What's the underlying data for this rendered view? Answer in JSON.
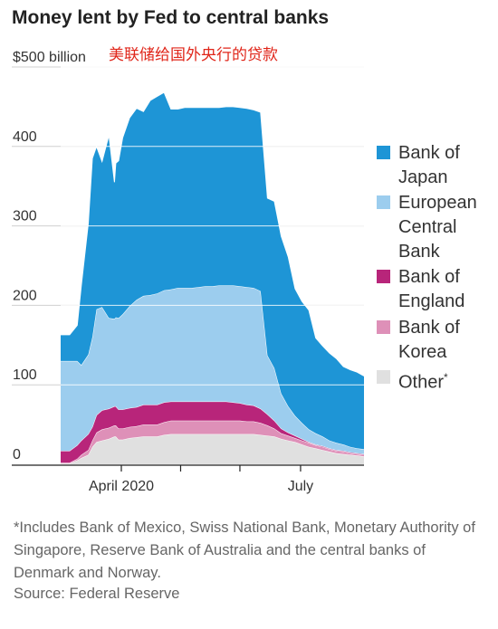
{
  "title": "Money lent by Fed to central banks",
  "subtitle_cn": "美联储给国外央行的贷款",
  "footnote": "*Includes Bank of Mexico, Swiss National Bank, Monetary Authority of Singapore, Reserve Bank of Australia and the central banks of Denmark and Norway.",
  "source": "Source: Federal Reserve",
  "colors": {
    "japan": "#1e95d6",
    "ecb": "#9ccdee",
    "england": "#b8257a",
    "korea": "#de90b8",
    "other": "#e0e0e0"
  },
  "chart_data": {
    "type": "area",
    "stacked": true,
    "ylabel": "$500 billion",
    "ylim": [
      0,
      500
    ],
    "y_ticks": [
      "0",
      "100",
      "200",
      "300",
      "400",
      "$500 billion"
    ],
    "y_tick_values": [
      0,
      100,
      200,
      300,
      400,
      500
    ],
    "x_labels": [
      {
        "label": "April 2020",
        "x": 4.4
      },
      {
        "label": "July",
        "x": 17.4
      }
    ],
    "x_ticks": [
      4.4,
      8.7,
      13,
      17.4
    ],
    "x": [
      0,
      0.6,
      0.65,
      1.2,
      1.5,
      2.0,
      2.3,
      2.6,
      3.0,
      3.5,
      3.9,
      4.0,
      4.2,
      4.5,
      5.0,
      5.5,
      6.0,
      6.5,
      7.0,
      7.5,
      8.0,
      8.5,
      9.0,
      9.5,
      10.0,
      10.5,
      11.0,
      11.5,
      12.0,
      12.5,
      13.0,
      13.5,
      14.0,
      14.5,
      15.0,
      15.5,
      16.0,
      16.5,
      17.0,
      17.5,
      18.0,
      18.5,
      19.0,
      19.5,
      20.0,
      20.5,
      21.0,
      21.5,
      22.0
    ],
    "series": [
      {
        "name": "Other*",
        "color_key": "other",
        "values": [
          1,
          1,
          1,
          5,
          8,
          12,
          22,
          28,
          30,
          32,
          35,
          35,
          31,
          31,
          33,
          34,
          35,
          35,
          35,
          37,
          38,
          38,
          38,
          38,
          38,
          38,
          38,
          38,
          38,
          38,
          38,
          38,
          38,
          37,
          36,
          35,
          32,
          30,
          28,
          25,
          22,
          20,
          18,
          16,
          14,
          13,
          12,
          11,
          10
        ]
      },
      {
        "name": "Bank of Korea",
        "color_key": "korea",
        "values": [
          1,
          1,
          1,
          2,
          4,
          6,
          8,
          12,
          14,
          14,
          14,
          14,
          14,
          14,
          14,
          14,
          15,
          15,
          15,
          16,
          17,
          17,
          17,
          17,
          17,
          17,
          17,
          17,
          17,
          17,
          17,
          16,
          16,
          15,
          13,
          10,
          7,
          6,
          5,
          5,
          5,
          4,
          4,
          3,
          3,
          3,
          2,
          2,
          2
        ]
      },
      {
        "name": "Bank of England",
        "color_key": "england",
        "values": [
          15,
          15,
          15,
          17,
          18,
          20,
          17,
          22,
          24,
          24,
          24,
          24,
          24,
          24,
          24,
          24,
          25,
          25,
          25,
          25,
          24,
          24,
          24,
          24,
          24,
          24,
          24,
          24,
          24,
          23,
          22,
          21,
          20,
          18,
          14,
          10,
          6,
          4,
          3,
          2,
          1,
          1,
          1,
          1,
          1,
          1,
          1,
          1,
          1
        ]
      },
      {
        "name": "European Central Bank",
        "color_key": "ecb",
        "values": [
          113,
          113,
          113,
          106,
          95,
          100,
          113,
          133,
          130,
          114,
          110,
          112,
          115,
          120,
          128,
          135,
          137,
          138,
          140,
          141,
          141,
          143,
          143,
          143,
          144,
          145,
          145,
          146,
          146,
          147,
          147,
          148,
          148,
          148,
          74,
          66,
          44,
          33,
          25,
          20,
          16,
          14,
          12,
          10,
          9,
          8,
          7,
          6,
          6
        ]
      },
      {
        "name": "Bank of Japan",
        "color_key": "japan",
        "values": [
          33,
          33,
          33,
          45,
          100,
          165,
          225,
          205,
          183,
          230,
          172,
          194,
          198,
          222,
          237,
          241,
          232,
          245,
          248,
          249,
          227,
          225,
          227,
          227,
          226,
          225,
          225,
          224,
          225,
          225,
          225,
          225,
          224,
          225,
          198,
          210,
          198,
          188,
          160,
          153,
          150,
          120,
          114,
          110,
          106,
          98,
          97,
          96,
          92
        ]
      }
    ],
    "legend": [
      {
        "label": "Bank of Japan",
        "lines": [
          "Bank of",
          "Japan"
        ],
        "color_key": "japan"
      },
      {
        "label": "European Central Bank",
        "lines": [
          "European",
          "Central",
          "Bank"
        ],
        "color_key": "ecb"
      },
      {
        "label": "Bank of England",
        "lines": [
          "Bank of",
          "England"
        ],
        "color_key": "england"
      },
      {
        "label": "Bank of Korea",
        "lines": [
          "Bank of",
          "Korea"
        ],
        "color_key": "korea"
      },
      {
        "label": "Other*",
        "lines": [
          "Other"
        ],
        "sup": "*",
        "color_key": "other"
      }
    ],
    "grid": true,
    "legend_position": "right"
  }
}
